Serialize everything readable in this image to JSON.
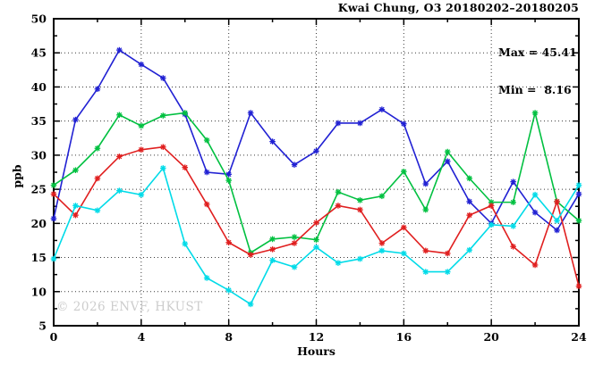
{
  "header": {
    "title": "Kwai Chung, O3 20180202–20180205"
  },
  "annotations": {
    "max_line": "Max = 45.41",
    "min_line": "Min =  8.16"
  },
  "watermark": "© 2026 ENVF, HKUST",
  "chart_data": {
    "type": "line",
    "title": "Kwai Chung, O3 20180202–20180205",
    "xlabel": "Hours",
    "ylabel": "ppb",
    "xlim": [
      0,
      24
    ],
    "ylim": [
      5,
      50
    ],
    "xticks_major": [
      0,
      4,
      8,
      12,
      16,
      20,
      24
    ],
    "xticks_minor": [
      2,
      6,
      10,
      14,
      18,
      22
    ],
    "yticks_major": [
      5,
      10,
      15,
      20,
      25,
      30,
      35,
      40,
      45,
      50
    ],
    "yticks_minor": [
      7.5,
      12.5,
      17.5,
      22.5,
      27.5,
      32.5,
      37.5,
      42.5,
      47.5
    ],
    "grid_x": [
      4,
      8,
      12,
      16,
      20
    ],
    "grid_y": [
      10,
      15,
      20,
      25,
      30,
      35,
      40,
      45
    ],
    "legend_position": "none",
    "max_value": 45.41,
    "min_value": 8.16,
    "x": [
      0,
      1,
      2,
      3,
      4,
      5,
      6,
      7,
      8,
      9,
      10,
      11,
      12,
      13,
      14,
      15,
      16,
      17,
      18,
      19,
      20,
      21,
      22,
      23,
      24
    ],
    "series": [
      {
        "name": "series-blue",
        "color": "#2121d3",
        "values": [
          20.7,
          35.2,
          39.7,
          45.41,
          43.3,
          41.3,
          36.0,
          27.5,
          27.2,
          36.2,
          32.0,
          28.6,
          30.6,
          34.7,
          34.7,
          36.7,
          34.6,
          25.8,
          29.1,
          23.2,
          20.0,
          26.1,
          21.6,
          19.0,
          24.3
        ]
      },
      {
        "name": "series-green",
        "color": "#00c040",
        "values": [
          25.6,
          27.8,
          31.0,
          35.9,
          34.3,
          35.8,
          36.2,
          32.2,
          26.3,
          15.7,
          17.7,
          18.0,
          17.6,
          24.6,
          23.4,
          24.0,
          27.6,
          22.0,
          30.5,
          26.6,
          23.1,
          23.1,
          36.2,
          23.2,
          20.4
        ]
      },
      {
        "name": "series-red",
        "color": "#e01f1f",
        "values": [
          24.3,
          21.2,
          26.6,
          29.8,
          30.8,
          31.2,
          28.2,
          22.8,
          17.2,
          15.4,
          16.2,
          17.1,
          20.1,
          22.6,
          22.0,
          17.1,
          19.4,
          16.0,
          15.6,
          21.2,
          22.6,
          16.6,
          13.9,
          23.2,
          10.8
        ]
      },
      {
        "name": "series-cyan",
        "color": "#00dbe8",
        "values": [
          14.8,
          22.6,
          21.9,
          24.8,
          24.2,
          28.1,
          17.0,
          12.0,
          10.2,
          8.16,
          14.6,
          13.6,
          16.5,
          14.2,
          14.8,
          16.0,
          15.6,
          12.9,
          12.9,
          16.1,
          19.8,
          19.6,
          24.2,
          20.4,
          25.6
        ]
      }
    ]
  }
}
